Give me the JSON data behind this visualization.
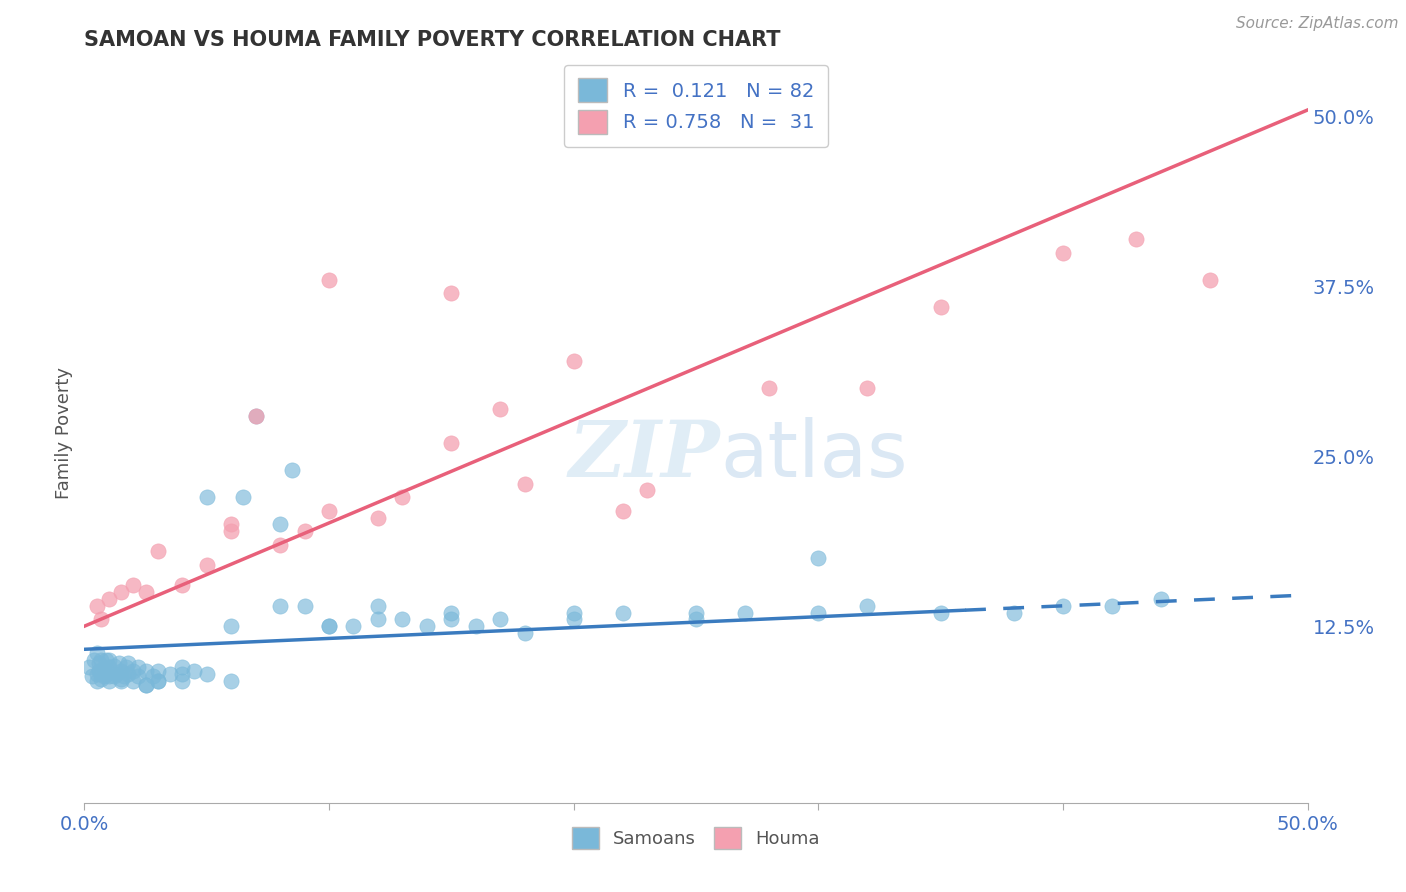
{
  "title": "SAMOAN VS HOUMA FAMILY POVERTY CORRELATION CHART",
  "source": "Source: ZipAtlas.com",
  "ylabel": "Family Poverty",
  "xlim": [
    0.0,
    0.5
  ],
  "ylim": [
    -0.005,
    0.54
  ],
  "right_yticks": [
    0.125,
    0.25,
    0.375,
    0.5
  ],
  "right_yticklabels": [
    "12.5%",
    "25.0%",
    "37.5%",
    "50.0%"
  ],
  "xtick_vals": [
    0.0,
    0.1,
    0.2,
    0.3,
    0.4,
    0.5
  ],
  "xticklabels": [
    "0.0%",
    "",
    "",
    "",
    "",
    "50.0%"
  ],
  "samoans_R": 0.121,
  "samoans_N": 82,
  "houma_R": 0.758,
  "houma_N": 31,
  "samoan_color": "#7ab8d9",
  "houma_color": "#f4a0b0",
  "samoan_line_color": "#3a7bbf",
  "houma_line_color": "#e8607a",
  "background": "#ffffff",
  "grid_color": "#d0d0d0",
  "samoan_line_solid_end": 0.36,
  "samoan_line_x0": 0.0,
  "samoan_line_x1": 0.5,
  "samoan_line_y0": 0.108,
  "samoan_line_y1": 0.148,
  "houma_line_x0": 0.0,
  "houma_line_x1": 0.5,
  "houma_line_y0": 0.125,
  "houma_line_y1": 0.505,
  "samoans_x": [
    0.002,
    0.003,
    0.004,
    0.005,
    0.005,
    0.006,
    0.006,
    0.007,
    0.007,
    0.008,
    0.008,
    0.009,
    0.009,
    0.01,
    0.01,
    0.01,
    0.012,
    0.012,
    0.013,
    0.014,
    0.015,
    0.015,
    0.016,
    0.017,
    0.018,
    0.018,
    0.02,
    0.02,
    0.022,
    0.022,
    0.025,
    0.025,
    0.028,
    0.03,
    0.03,
    0.035,
    0.04,
    0.04,
    0.045,
    0.05,
    0.05,
    0.06,
    0.065,
    0.07,
    0.08,
    0.085,
    0.09,
    0.1,
    0.11,
    0.12,
    0.13,
    0.14,
    0.15,
    0.16,
    0.17,
    0.18,
    0.2,
    0.22,
    0.25,
    0.27,
    0.3,
    0.32,
    0.35,
    0.38,
    0.4,
    0.3,
    0.25,
    0.2,
    0.15,
    0.12,
    0.42,
    0.44,
    0.1,
    0.08,
    0.06,
    0.04,
    0.03,
    0.025,
    0.015,
    0.01,
    0.007,
    0.005
  ],
  "samoans_y": [
    0.095,
    0.088,
    0.1,
    0.09,
    0.105,
    0.092,
    0.098,
    0.086,
    0.1,
    0.088,
    0.094,
    0.09,
    0.1,
    0.085,
    0.095,
    0.1,
    0.088,
    0.096,
    0.09,
    0.098,
    0.085,
    0.092,
    0.088,
    0.095,
    0.09,
    0.098,
    0.085,
    0.092,
    0.088,
    0.095,
    0.082,
    0.092,
    0.088,
    0.085,
    0.092,
    0.09,
    0.085,
    0.095,
    0.092,
    0.22,
    0.09,
    0.085,
    0.22,
    0.28,
    0.2,
    0.24,
    0.14,
    0.125,
    0.125,
    0.14,
    0.13,
    0.125,
    0.13,
    0.125,
    0.13,
    0.12,
    0.13,
    0.135,
    0.13,
    0.135,
    0.135,
    0.14,
    0.135,
    0.135,
    0.14,
    0.175,
    0.135,
    0.135,
    0.135,
    0.13,
    0.14,
    0.145,
    0.125,
    0.14,
    0.125,
    0.09,
    0.085,
    0.082,
    0.086,
    0.088,
    0.09,
    0.085
  ],
  "houma_x": [
    0.005,
    0.007,
    0.01,
    0.015,
    0.02,
    0.025,
    0.03,
    0.04,
    0.05,
    0.06,
    0.07,
    0.08,
    0.09,
    0.1,
    0.12,
    0.13,
    0.15,
    0.17,
    0.18,
    0.2,
    0.22,
    0.23,
    0.15,
    0.1,
    0.06,
    0.28,
    0.32,
    0.35,
    0.4,
    0.43,
    0.46
  ],
  "houma_y": [
    0.14,
    0.13,
    0.145,
    0.15,
    0.155,
    0.15,
    0.18,
    0.155,
    0.17,
    0.195,
    0.28,
    0.185,
    0.195,
    0.21,
    0.205,
    0.22,
    0.26,
    0.285,
    0.23,
    0.32,
    0.21,
    0.225,
    0.37,
    0.38,
    0.2,
    0.3,
    0.3,
    0.36,
    0.4,
    0.41,
    0.38
  ]
}
